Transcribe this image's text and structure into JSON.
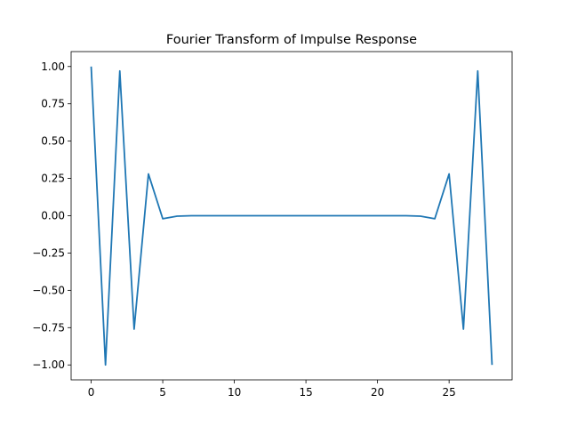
{
  "chart_data": {
    "type": "line",
    "title": "Fourier Transform of Impulse Response",
    "xlabel": "",
    "ylabel": "",
    "xlim": [
      -1.4,
      29.4
    ],
    "ylim": [
      -1.1,
      1.1
    ],
    "xticks": [
      0,
      5,
      10,
      15,
      20,
      25
    ],
    "yticks": [
      -1.0,
      -0.75,
      -0.5,
      -0.25,
      0.0,
      0.25,
      0.5,
      0.75,
      1.0
    ],
    "xtick_labels": [
      "0",
      "5",
      "10",
      "15",
      "20",
      "25"
    ],
    "ytick_labels": [
      "−1.00",
      "−0.75",
      "−0.50",
      "−0.25",
      "0.00",
      "0.25",
      "0.50",
      "0.75",
      "1.00"
    ],
    "grid": false,
    "series": [
      {
        "color": "#1f77b4",
        "x": [
          0,
          1,
          2,
          3,
          4,
          5,
          6,
          7,
          8,
          9,
          10,
          11,
          12,
          13,
          14,
          15,
          16,
          17,
          18,
          19,
          20,
          21,
          22,
          23,
          24,
          25,
          26,
          27,
          28
        ],
        "values": [
          1.0,
          -1.0,
          0.97,
          -0.76,
          0.28,
          -0.02,
          -0.003,
          0.0,
          0.0,
          0.0,
          0.0,
          0.0,
          0.0,
          0.0,
          0.0,
          0.0,
          0.0,
          0.0,
          0.0,
          0.0,
          0.0,
          0.0,
          0.0,
          -0.003,
          -0.02,
          0.28,
          -0.76,
          0.97,
          -1.0
        ]
      }
    ]
  }
}
